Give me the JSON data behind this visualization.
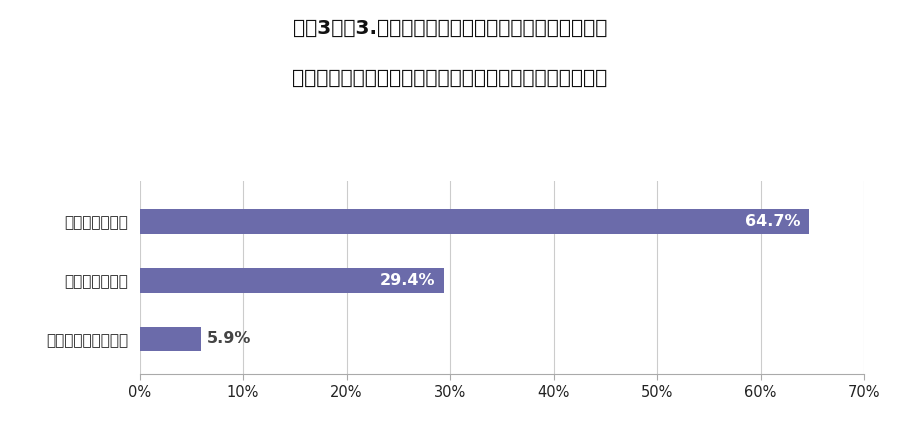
{
  "title_line1": "質問3で「3.住宅購入予算」を選択した方に質問です。",
  "title_line2": "コロナ前後で住宅購入予算はどのように変更しましたか？",
  "categories": [
    "特に変更していない",
    "予算を増やした",
    "予算を減らした"
  ],
  "values": [
    5.9,
    29.4,
    64.7
  ],
  "labels": [
    "5.9%",
    "29.4%",
    "64.7%"
  ],
  "bar_color": "#6B6BAA",
  "label_color_inside": "#ffffff",
  "label_color_outside": "#444444",
  "title_color": "#111111",
  "background_color": "#ffffff",
  "grid_color": "#cccccc",
  "spine_color": "#aaaaaa",
  "xlim": [
    0,
    70
  ],
  "xticks": [
    0,
    10,
    20,
    30,
    40,
    50,
    60,
    70
  ],
  "xtick_labels": [
    "0%",
    "10%",
    "20%",
    "30%",
    "40%",
    "50%",
    "60%",
    "70%"
  ],
  "title_fontsize": 14.5,
  "label_fontsize": 11.5,
  "tick_fontsize": 10.5,
  "ytick_fontsize": 11,
  "bar_height": 0.42
}
